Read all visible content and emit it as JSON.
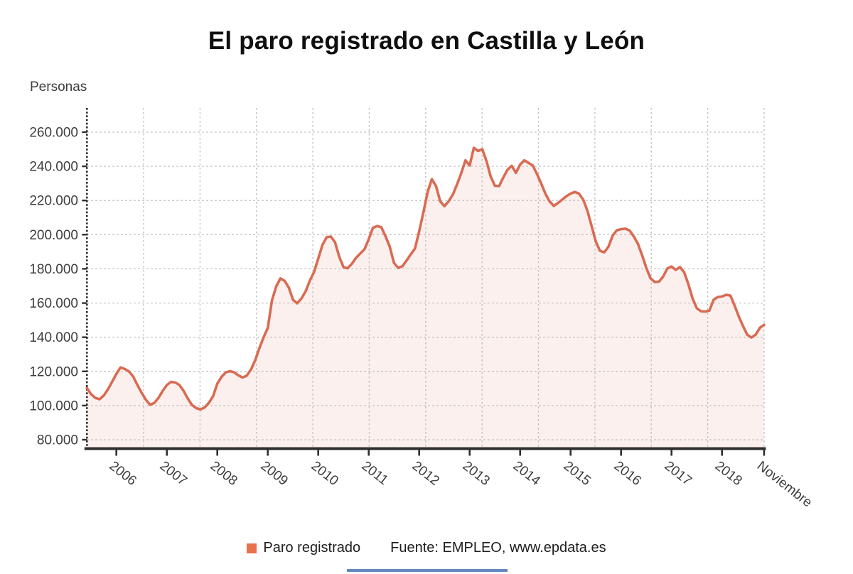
{
  "title": "El paro registrado en Castilla y León",
  "y_axis_title": "Personas",
  "footer": {
    "legend_label": "Paro registrado",
    "source": "Fuente: EMPLEO, www.epdata.es"
  },
  "colors": {
    "line": "#d96b53",
    "legend_swatch": "#e8714e",
    "area_fill": "rgba(217,107,83,0.10)",
    "grid": "#bdbdbd",
    "axis": "#2f2f2f",
    "tick_text": "#3d3d3d",
    "bottom_bar": "#4a74b4"
  },
  "chart_data": {
    "type": "area",
    "title": "El paro registrado en Castilla y León",
    "ylabel": "Personas",
    "series_name": "Paro registrado",
    "unit": "personas",
    "frequency": "monthly",
    "x_start": "2005-06",
    "x_end": "2018-11",
    "grid": true,
    "legend_position": "bottom",
    "ylim": [
      80000,
      272000
    ],
    "y_ticks": [
      260000,
      240000,
      220000,
      200000,
      180000,
      160000,
      140000,
      120000,
      100000,
      80000
    ],
    "x_tick_labels": [
      "2006",
      "2007",
      "2008",
      "2009",
      "2010",
      "2011",
      "2012",
      "2013",
      "2014",
      "2015",
      "2016",
      "2017",
      "2018",
      "Noviembre"
    ],
    "values": [
      110300,
      106600,
      104500,
      103700,
      105900,
      109500,
      114000,
      118500,
      122300,
      121400,
      119900,
      117000,
      112000,
      107500,
      103500,
      100500,
      101500,
      104500,
      108500,
      112000,
      113900,
      113500,
      112000,
      108500,
      104000,
      100300,
      98500,
      97700,
      98900,
      101600,
      105500,
      112800,
      116800,
      119400,
      120100,
      119500,
      117700,
      116400,
      117500,
      121100,
      126500,
      133600,
      139900,
      145300,
      161500,
      169800,
      174400,
      173000,
      169000,
      161900,
      159800,
      162700,
      166900,
      173100,
      178100,
      186000,
      194000,
      198500,
      198900,
      195500,
      187000,
      181000,
      180300,
      183000,
      186500,
      189000,
      191500,
      197300,
      204000,
      205100,
      204300,
      199000,
      193000,
      183500,
      180600,
      181500,
      184900,
      188500,
      191900,
      202000,
      213000,
      225000,
      232500,
      228500,
      219500,
      216700,
      219500,
      223500,
      229500,
      236000,
      243500,
      240500,
      250800,
      249000,
      250000,
      243100,
      234000,
      228600,
      228400,
      233500,
      238000,
      240300,
      236200,
      241000,
      243500,
      242000,
      240500,
      235500,
      230000,
      224000,
      219500,
      216800,
      218500,
      220500,
      222500,
      224000,
      225000,
      224000,
      220500,
      214000,
      205000,
      196000,
      190500,
      189700,
      193000,
      199500,
      202600,
      203200,
      203500,
      202500,
      199000,
      194700,
      188000,
      180600,
      174500,
      172300,
      172500,
      175500,
      180200,
      181400,
      179400,
      181000,
      178000,
      171000,
      162700,
      157000,
      155200,
      155000,
      155600,
      161900,
      163500,
      163800,
      164800,
      164300,
      158500,
      152000,
      146500,
      141500,
      139800,
      141500,
      145500,
      147200
    ]
  }
}
